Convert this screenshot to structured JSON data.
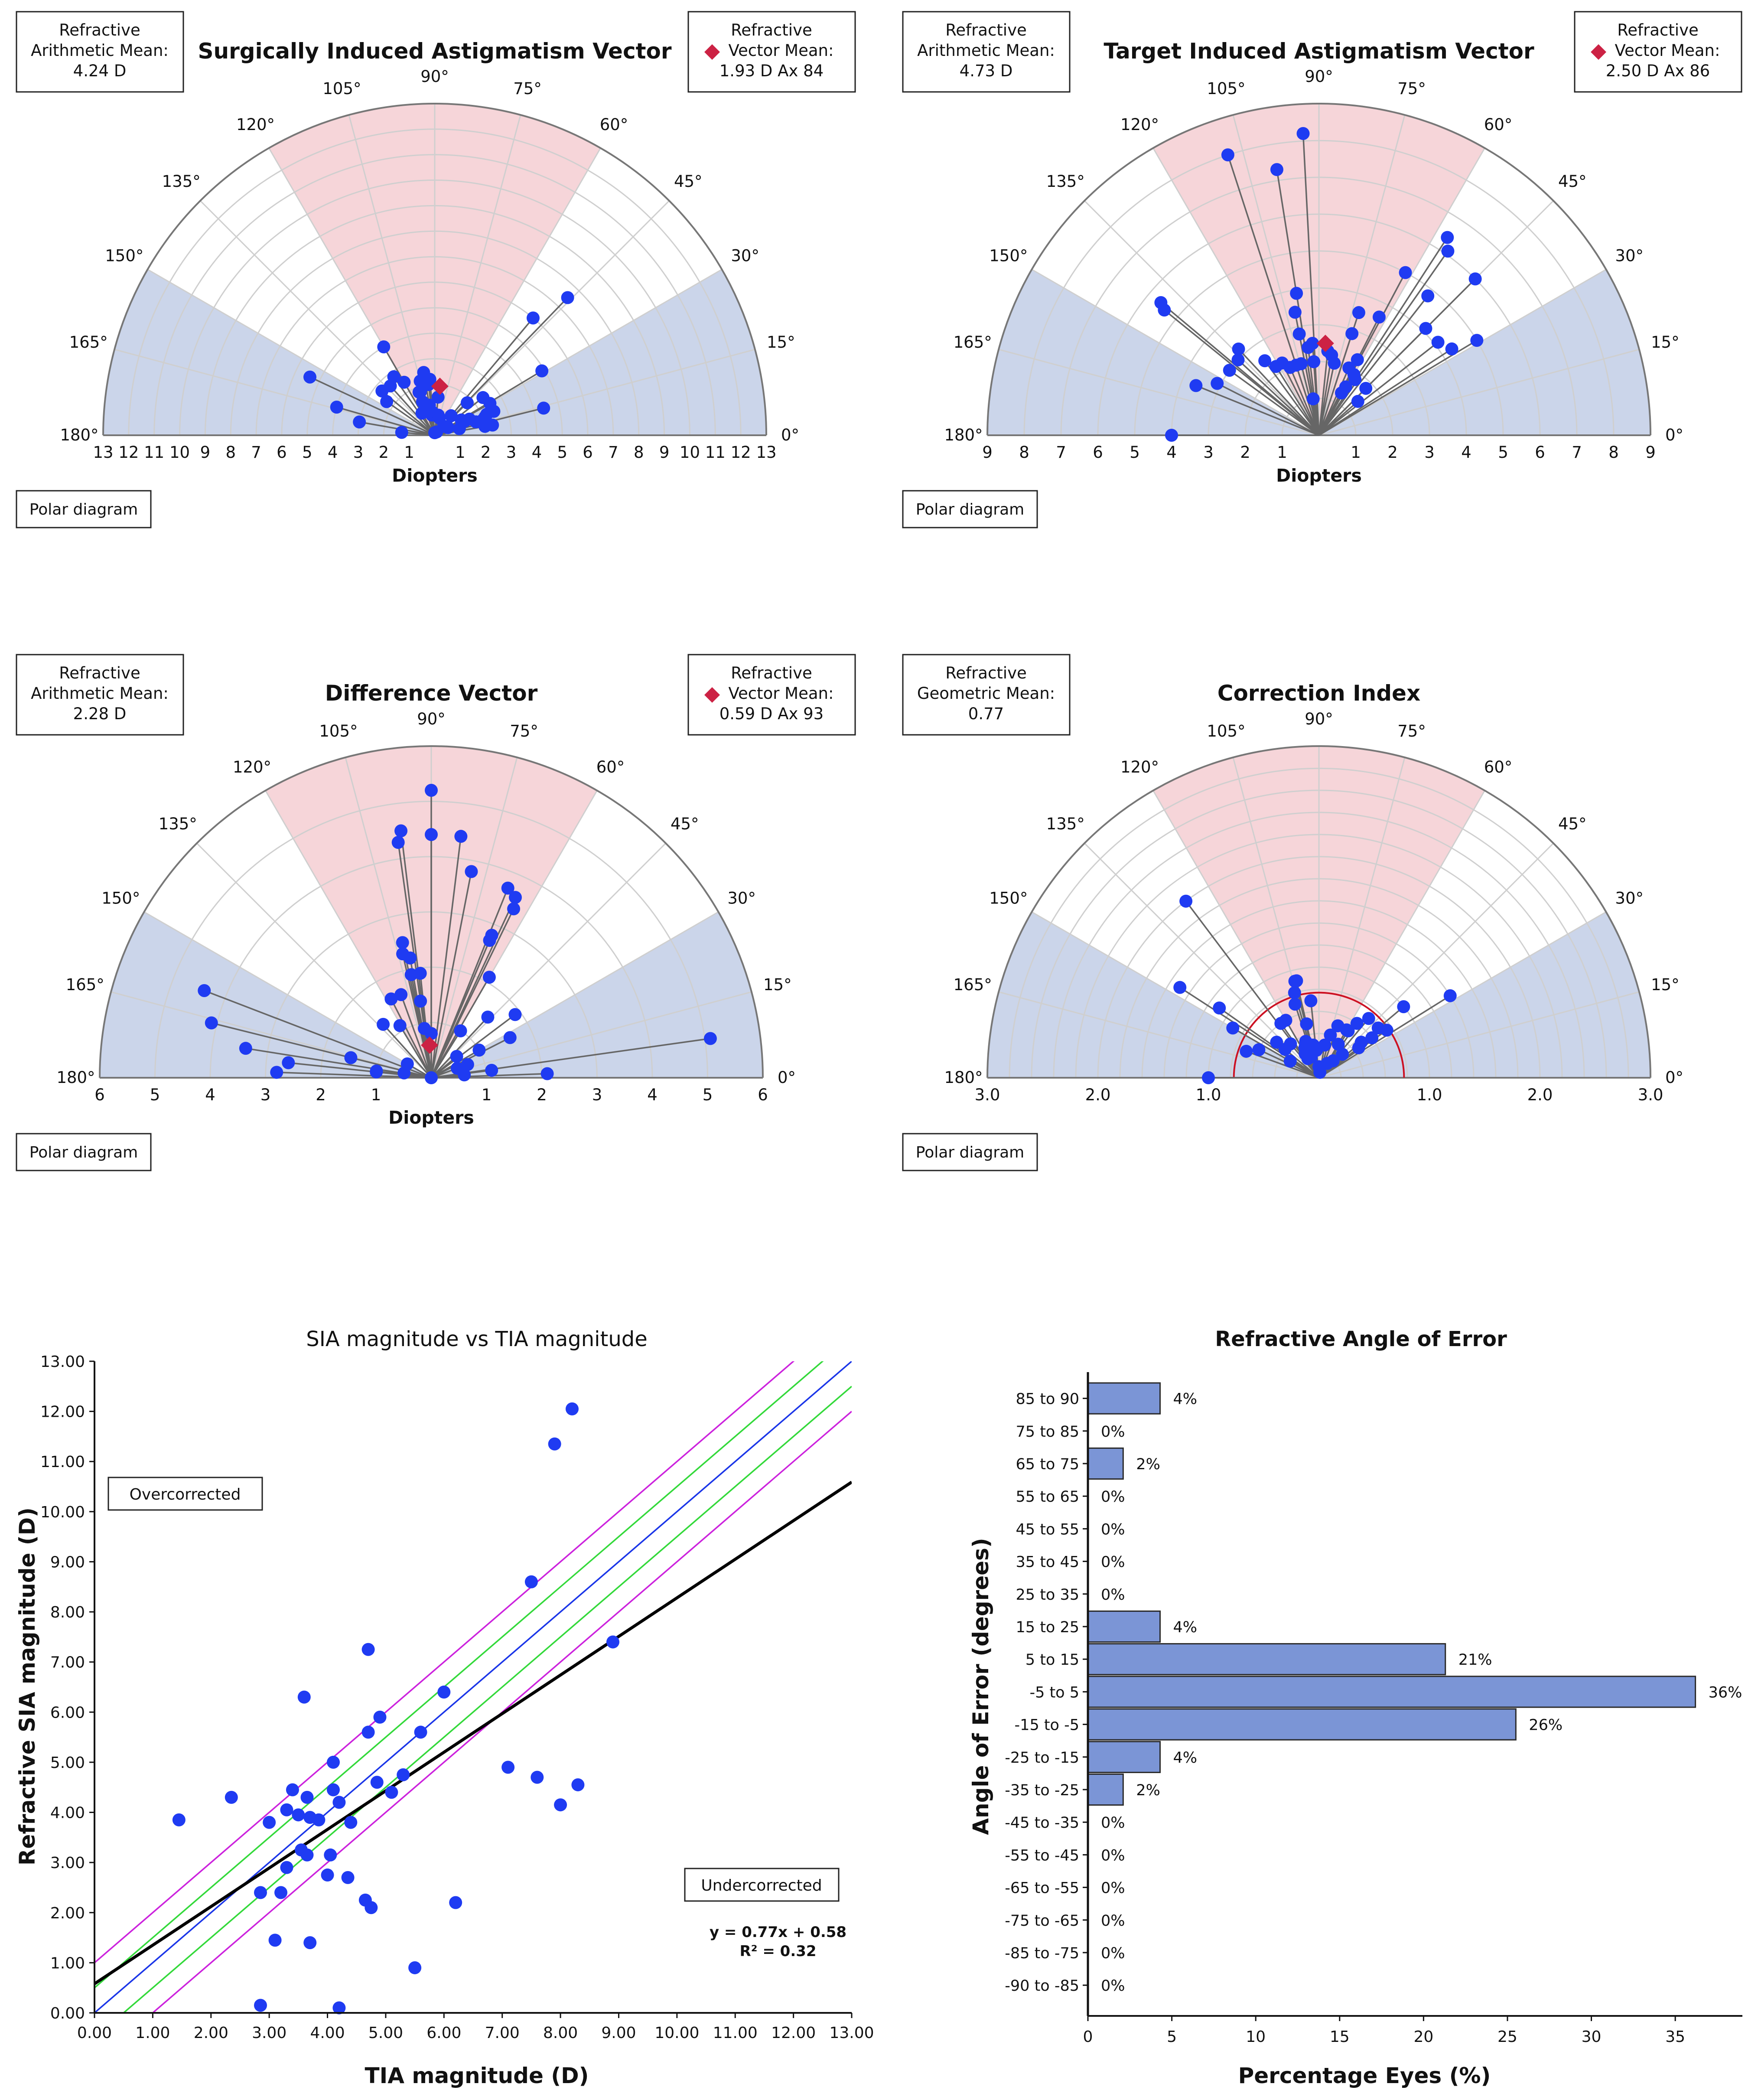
{
  "colors": {
    "point": "#1f3bf2",
    "mean_marker": "#cc2244",
    "pink_sector": "#f6d5d9",
    "blue_sector": "#cbd5ea",
    "grid": "#cfcfcf",
    "spoke": "#666666",
    "bar_fill": "#7b95d6",
    "fit_line": "#000000",
    "identity_line": "#1a35e8",
    "green_band": "#33d93a",
    "magenta_band": "#cc22dd",
    "ci_circle": "#cc1122"
  },
  "chart_data": [
    {
      "type": "polar",
      "title": "Surgically Induced Astigmatism Vector",
      "left_box": [
        "Refractive",
        "Arithmetic Mean:",
        "4.24 D"
      ],
      "right_box": [
        "Refractive",
        "Vector Mean:",
        "1.93 D Ax 84"
      ],
      "mean_marker": {
        "magnitude": 1.93,
        "axis": 84
      },
      "xlabel": "Diopters",
      "rmax": 13,
      "ring_count": 13,
      "scale_labels": [
        "13",
        "12",
        "11",
        "10",
        "9",
        "8",
        "7",
        "6",
        "5",
        "4",
        "3",
        "2",
        "1",
        "1",
        "2",
        "3",
        "4",
        "5",
        "6",
        "7",
        "8",
        "9",
        "10",
        "11",
        "12",
        "13"
      ],
      "angle_labels": [
        "0°",
        "15°",
        "30°",
        "45°",
        "60°",
        "75°",
        "90°",
        "105°",
        "120°",
        "135°",
        "150°",
        "165°",
        "180°"
      ],
      "button": "Polar diagram",
      "points": [
        [
          7.5,
          46
        ],
        [
          6.0,
          50
        ],
        [
          4.9,
          31
        ],
        [
          4.4,
          14
        ],
        [
          4.0,
          120
        ],
        [
          2.4,
          120
        ],
        [
          1.8,
          110
        ],
        [
          1.8,
          45
        ],
        [
          2.4,
          38
        ],
        [
          2.5,
          30
        ],
        [
          2.5,
          22
        ],
        [
          2.2,
          22
        ],
        [
          2.1,
          20
        ],
        [
          2.0,
          18
        ],
        [
          1.7,
          18
        ],
        [
          1.5,
          25
        ],
        [
          1.3,
          25
        ],
        [
          1.2,
          30
        ],
        [
          1.0,
          50
        ],
        [
          0.9,
          95
        ],
        [
          1.5,
          85
        ],
        [
          2.2,
          95
        ],
        [
          2.0,
          97
        ],
        [
          2.5,
          100
        ],
        [
          2.2,
          105
        ],
        [
          2.8,
          125
        ],
        [
          2.6,
          132
        ],
        [
          2.7,
          140
        ],
        [
          2.3,
          145
        ],
        [
          5.4,
          155
        ],
        [
          4.0,
          164
        ],
        [
          3.0,
          170
        ],
        [
          1.3,
          175
        ],
        [
          1.2,
          100
        ],
        [
          1.0,
          120
        ],
        [
          1.8,
          108
        ],
        [
          1.4,
          110
        ],
        [
          0.8,
          98
        ],
        [
          0.8,
          80
        ],
        [
          0.7,
          75
        ],
        [
          0.5,
          45
        ],
        [
          0.6,
          30
        ],
        [
          1.0,
          15
        ],
        [
          2.0,
          10
        ],
        [
          2.3,
          10
        ],
        [
          0.1,
          90
        ],
        [
          0.15,
          60
        ]
      ]
    },
    {
      "type": "polar",
      "title": "Target Induced Astigmatism Vector",
      "left_box": [
        "Refractive",
        "Arithmetic Mean:",
        "4.73 D"
      ],
      "right_box": [
        "Refractive",
        "Vector Mean:",
        "2.50 D Ax 86"
      ],
      "mean_marker": {
        "magnitude": 2.5,
        "axis": 86
      },
      "xlabel": "Diopters",
      "rmax": 9,
      "ring_count": 9,
      "scale_labels": [
        "9",
        "8",
        "7",
        "6",
        "5",
        "4",
        "3",
        "2",
        "1",
        "1",
        "2",
        "3",
        "4",
        "5",
        "6",
        "7",
        "8",
        "9"
      ],
      "angle_labels": [
        "0°",
        "15°",
        "30°",
        "45°",
        "60°",
        "75°",
        "90°",
        "105°",
        "120°",
        "135°",
        "150°",
        "165°",
        "180°"
      ],
      "button": "Polar diagram",
      "points": [
        [
          8.2,
          93
        ],
        [
          8.0,
          108
        ],
        [
          7.3,
          99
        ],
        [
          6.0,
          45
        ],
        [
          6.4,
          57
        ],
        [
          6.1,
          55
        ],
        [
          5.6,
          140
        ],
        [
          5.4,
          141
        ],
        [
          5.0,
          62
        ],
        [
          5.0,
          31
        ],
        [
          4.8,
          52
        ],
        [
          4.3,
          33
        ],
        [
          4.1,
          38
        ],
        [
          4.1,
          45
        ],
        [
          3.6,
          63
        ],
        [
          3.5,
          72
        ],
        [
          3.2,
          133
        ],
        [
          3.0,
          144
        ],
        [
          3.0,
          137
        ],
        [
          2.8,
          101
        ],
        [
          2.5,
          126
        ],
        [
          2.2,
          122
        ],
        [
          2.2,
          117
        ],
        [
          2.0,
          113
        ],
        [
          2.4,
          97
        ],
        [
          2.5,
          94
        ],
        [
          2.0,
          108
        ],
        [
          2.0,
          104
        ],
        [
          2.0,
          94
        ],
        [
          2.2,
          81
        ],
        [
          2.3,
          84
        ],
        [
          2.0,
          78
        ],
        [
          3.4,
          101
        ],
        [
          3.9,
          99
        ],
        [
          3.1,
          153
        ],
        [
          3.6,
          158
        ],
        [
          2.0,
          66
        ],
        [
          2.3,
          63
        ],
        [
          1.9,
          60
        ],
        [
          1.8,
          45
        ],
        [
          1.8,
          57
        ],
        [
          1.3,
          62
        ],
        [
          1.4,
          41
        ],
        [
          1.0,
          99
        ],
        [
          4.0,
          180
        ],
        [
          1.5,
          61
        ],
        [
          2.9,
          72
        ]
      ]
    },
    {
      "type": "polar",
      "title": "Difference Vector",
      "left_box": [
        "Refractive",
        "Arithmetic Mean:",
        "2.28 D"
      ],
      "right_box": [
        "Refractive",
        "Vector Mean:",
        "0.59 D Ax 93"
      ],
      "mean_marker": {
        "magnitude": 0.59,
        "axis": 93
      },
      "xlabel": "Diopters",
      "rmax": 6,
      "ring_count": 6,
      "scale_labels": [
        "6",
        "5",
        "4",
        "3",
        "2",
        "1",
        "1",
        "2",
        "3",
        "4",
        "5",
        "6"
      ],
      "angle_labels": [
        "0°",
        "15°",
        "30°",
        "45°",
        "60°",
        "75°",
        "90°",
        "105°",
        "120°",
        "135°",
        "150°",
        "165°",
        "180°"
      ],
      "button": "Polar diagram",
      "points": [
        [
          5.2,
          90
        ],
        [
          4.5,
          97
        ],
        [
          4.3,
          98
        ],
        [
          4.4,
          90
        ],
        [
          4.4,
          83
        ],
        [
          3.8,
          79
        ],
        [
          3.7,
          68
        ],
        [
          3.6,
          65
        ],
        [
          3.4,
          64
        ],
        [
          2.8,
          67
        ],
        [
          2.7,
          67
        ],
        [
          2.1,
          60
        ],
        [
          2.5,
          102
        ],
        [
          2.3,
          103
        ],
        [
          2.2,
          100
        ],
        [
          1.9,
          96
        ],
        [
          1.9,
          101
        ],
        [
          1.4,
          98
        ],
        [
          1.6,
          110
        ],
        [
          1.6,
          117
        ],
        [
          1.3,
          132
        ],
        [
          1.1,
          121
        ],
        [
          0.8,
          90
        ],
        [
          1.0,
          58
        ],
        [
          1.5,
          47
        ],
        [
          1.9,
          37
        ],
        [
          1.6,
          27
        ],
        [
          1.0,
          30
        ],
        [
          0.6,
          40
        ],
        [
          0.7,
          20
        ],
        [
          0.5,
          20
        ],
        [
          1.1,
          7
        ],
        [
          5.1,
          8
        ],
        [
          4.4,
          159
        ],
        [
          4.1,
          166
        ],
        [
          3.4,
          171
        ],
        [
          2.8,
          178
        ],
        [
          2.6,
          174
        ],
        [
          1.5,
          166
        ],
        [
          1.0,
          173
        ],
        [
          1.0,
          174
        ],
        [
          0.5,
          170
        ],
        [
          0.5,
          150
        ],
        [
          2.1,
          2
        ],
        [
          0.6,
          5
        ],
        [
          0.0,
          90
        ],
        [
          0.9,
          98
        ]
      ]
    },
    {
      "type": "polar",
      "title": "Correction Index",
      "left_box": [
        "Refractive",
        "Geometric Mean:",
        "0.77"
      ],
      "right_box": [],
      "reference_circle": 0.77,
      "xlabel": "",
      "rmax": 3.0,
      "ring_count": 15,
      "scale_labels": [
        "3.0",
        "2.0",
        "1.0",
        "1.0",
        "2.0",
        "3.0"
      ],
      "angle_labels": [
        "0°",
        "15°",
        "30°",
        "45°",
        "60°",
        "75°",
        "90°",
        "105°",
        "120°",
        "135°",
        "150°",
        "165°",
        "180°"
      ],
      "button": "Polar diagram",
      "points": [
        [
          2.0,
          127
        ],
        [
          1.5,
          147
        ],
        [
          1.1,
          145
        ],
        [
          0.9,
          150
        ],
        [
          0.6,
          120
        ],
        [
          0.6,
          125
        ],
        [
          0.7,
          108
        ],
        [
          0.9,
          104
        ],
        [
          0.9,
          103
        ],
        [
          0.8,
          106
        ],
        [
          0.7,
          96
        ],
        [
          0.5,
          103
        ],
        [
          0.35,
          110
        ],
        [
          0.3,
          115
        ],
        [
          0.25,
          120
        ],
        [
          0.3,
          80
        ],
        [
          0.4,
          75
        ],
        [
          0.5,
          70
        ],
        [
          0.5,
          60
        ],
        [
          0.6,
          55
        ],
        [
          0.7,
          50
        ],
        [
          0.7,
          40
        ],
        [
          0.75,
          35
        ],
        [
          0.6,
          37
        ],
        [
          0.5,
          40
        ],
        [
          1.0,
          40
        ],
        [
          1.4,
          32
        ],
        [
          0.6,
          155
        ],
        [
          0.7,
          160
        ],
        [
          0.5,
          140
        ],
        [
          0.4,
          140
        ],
        [
          0.3,
          150
        ],
        [
          0.2,
          120
        ],
        [
          0.15,
          60
        ],
        [
          0.2,
          50
        ],
        [
          0.3,
          45
        ],
        [
          1.0,
          180
        ],
        [
          0.1,
          90
        ],
        [
          0.05,
          80
        ],
        [
          0.45,
          37
        ],
        [
          0.35,
          60
        ],
        [
          0.25,
          95
        ],
        [
          0.3,
          100
        ],
        [
          0.2,
          110
        ],
        [
          0.4,
          130
        ],
        [
          0.5,
          58
        ]
      ]
    },
    {
      "type": "scatter",
      "title": "SIA magnitude vs TIA magnitude",
      "xlabel": "TIA magnitude (D)",
      "ylabel": "Refractive SIA magnitude (D)",
      "xlim": [
        0,
        13
      ],
      "ylim": [
        0,
        13
      ],
      "xticks": [
        "0.00",
        "1.00",
        "2.00",
        "3.00",
        "4.00",
        "5.00",
        "6.00",
        "7.00",
        "8.00",
        "9.00",
        "10.00",
        "11.00",
        "12.00",
        "13.00"
      ],
      "yticks": [
        "0.00",
        "1.00",
        "2.00",
        "3.00",
        "4.00",
        "5.00",
        "6.00",
        "7.00",
        "8.00",
        "9.00",
        "10.00",
        "11.00",
        "12.00",
        "13.00"
      ],
      "overcorrected_label": "Overcorrected",
      "undercorrected_label": "Undercorrected",
      "equation": "y = 0.77x + 0.58",
      "r_squared": "R² = 0.32",
      "fit": {
        "slope": 0.77,
        "intercept": 0.58
      },
      "bands": [
        0.5,
        1.0
      ],
      "points": [
        [
          8.2,
          12.05
        ],
        [
          7.9,
          11.35
        ],
        [
          8.9,
          7.4
        ],
        [
          7.5,
          8.6
        ],
        [
          4.7,
          7.25
        ],
        [
          3.6,
          6.3
        ],
        [
          6.0,
          6.4
        ],
        [
          4.7,
          5.6
        ],
        [
          4.9,
          5.9
        ],
        [
          5.6,
          5.6
        ],
        [
          4.1,
          5.0
        ],
        [
          7.1,
          4.9
        ],
        [
          7.6,
          4.7
        ],
        [
          8.3,
          4.55
        ],
        [
          8.0,
          4.15
        ],
        [
          5.3,
          4.75
        ],
        [
          4.85,
          4.6
        ],
        [
          5.1,
          4.4
        ],
        [
          3.4,
          4.45
        ],
        [
          3.65,
          4.3
        ],
        [
          4.1,
          4.45
        ],
        [
          2.35,
          4.3
        ],
        [
          4.2,
          4.2
        ],
        [
          3.3,
          4.05
        ],
        [
          3.5,
          3.95
        ],
        [
          3.7,
          3.9
        ],
        [
          3.85,
          3.85
        ],
        [
          3.0,
          3.8
        ],
        [
          4.4,
          3.8
        ],
        [
          1.45,
          3.85
        ],
        [
          3.55,
          3.25
        ],
        [
          3.65,
          3.15
        ],
        [
          4.05,
          3.15
        ],
        [
          3.3,
          2.9
        ],
        [
          4.35,
          2.7
        ],
        [
          4.0,
          2.75
        ],
        [
          2.85,
          2.4
        ],
        [
          3.2,
          2.4
        ],
        [
          4.65,
          2.25
        ],
        [
          4.75,
          2.1
        ],
        [
          6.2,
          2.2
        ],
        [
          3.1,
          1.45
        ],
        [
          3.7,
          1.4
        ],
        [
          5.5,
          0.9
        ],
        [
          2.85,
          0.15
        ],
        [
          4.2,
          0.1
        ]
      ]
    },
    {
      "type": "bar",
      "orientation": "horizontal",
      "title": "Refractive Angle of Error",
      "xlabel": "Percentage Eyes (%)",
      "ylabel": "Angle of Error (degrees)",
      "xlim": [
        0,
        39
      ],
      "xticks": [
        "0",
        "5",
        "10",
        "15",
        "20",
        "25",
        "30",
        "35"
      ],
      "categories": [
        "85 to 90",
        "75 to 85",
        "65 to 75",
        "55 to 65",
        "45 to 55",
        "35 to 45",
        "25 to 35",
        "15 to 25",
        "5 to 15",
        "-5 to 5",
        "-15 to -5",
        "-25 to -15",
        "-35 to -25",
        "-45 to -35",
        "-55 to -45",
        "-65 to -55",
        "-75 to -65",
        "-85 to -75",
        "-90 to -85"
      ],
      "values": [
        4.3,
        0,
        2.1,
        0,
        0,
        0,
        0,
        4.3,
        21.3,
        36.2,
        25.5,
        4.3,
        2.1,
        0,
        0,
        0,
        0,
        0,
        0
      ],
      "value_labels": [
        "4%",
        "0%",
        "2%",
        "0%",
        "0%",
        "0%",
        "0%",
        "4%",
        "21%",
        "36%",
        "26%",
        "4%",
        "2%",
        "0%",
        "0%",
        "0%",
        "0%",
        "0%",
        "0%"
      ]
    }
  ]
}
